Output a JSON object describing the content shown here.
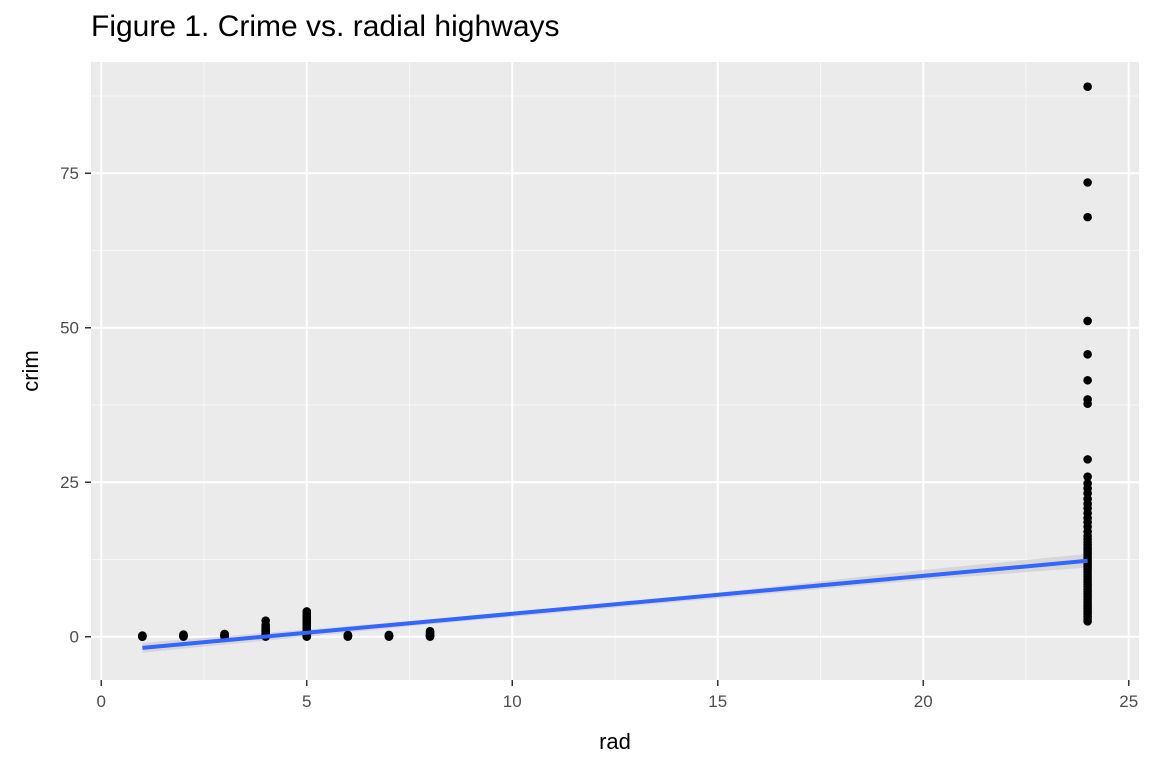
{
  "chart_data": {
    "type": "scatter",
    "title": "Figure 1. Crime vs. radial highways",
    "xlabel": "rad",
    "ylabel": "crim",
    "xlim": [
      -0.25,
      25.25
    ],
    "ylim": [
      -7,
      93
    ],
    "x_ticks": [
      0,
      5,
      10,
      15,
      20,
      25
    ],
    "y_ticks": [
      0,
      25,
      50,
      75
    ],
    "grid": true,
    "legend": "none",
    "colors": {
      "panel_background": "#ebebeb",
      "gridline": "#ffffff",
      "points": "#000000",
      "trend_line": "#3366ff",
      "confidence_band": "#c8c8c8"
    },
    "trend_line": {
      "method": "linear",
      "x": [
        1,
        24
      ],
      "y": [
        -1.8,
        12.3
      ]
    },
    "confidence_band": {
      "x": [
        1,
        8,
        14,
        20,
        24
      ],
      "lower": [
        -2.6,
        2.0,
        5.6,
        9.2,
        11.2
      ],
      "upper": [
        -1.0,
        2.8,
        6.4,
        10.8,
        13.4
      ]
    },
    "series": [
      {
        "points": [
          [
            1,
            0.01
          ],
          [
            1,
            0.03
          ],
          [
            1,
            0.06
          ],
          [
            1,
            0.09
          ],
          [
            1,
            0.13
          ],
          [
            1,
            0.2
          ],
          [
            2,
            0.02
          ],
          [
            2,
            0.05
          ],
          [
            2,
            0.1
          ],
          [
            2,
            0.15
          ],
          [
            2,
            0.25
          ],
          [
            2,
            0.35
          ],
          [
            3,
            0.02
          ],
          [
            3,
            0.05
          ],
          [
            3,
            0.1
          ],
          [
            3,
            0.15
          ],
          [
            3,
            0.25
          ],
          [
            3,
            0.35
          ],
          [
            3,
            0.45
          ],
          [
            4,
            0.02
          ],
          [
            4,
            0.05
          ],
          [
            4,
            0.1
          ],
          [
            4,
            0.2
          ],
          [
            4,
            0.35
          ],
          [
            4,
            0.5
          ],
          [
            4,
            0.7
          ],
          [
            4,
            0.9
          ],
          [
            4,
            1.1
          ],
          [
            4,
            1.3
          ],
          [
            4,
            1.6
          ],
          [
            4,
            1.9
          ],
          [
            4,
            2.6
          ],
          [
            5,
            0.02
          ],
          [
            5,
            0.05
          ],
          [
            5,
            0.1
          ],
          [
            5,
            0.2
          ],
          [
            5,
            0.35
          ],
          [
            5,
            0.5
          ],
          [
            5,
            0.7
          ],
          [
            5,
            0.9
          ],
          [
            5,
            1.1
          ],
          [
            5,
            1.3
          ],
          [
            5,
            1.6
          ],
          [
            5,
            1.9
          ],
          [
            5,
            2.2
          ],
          [
            5,
            2.5
          ],
          [
            5,
            2.8
          ],
          [
            5,
            3.1
          ],
          [
            5,
            3.4
          ],
          [
            5,
            3.7
          ],
          [
            5,
            4.1
          ],
          [
            6,
            0.02
          ],
          [
            6,
            0.05
          ],
          [
            6,
            0.1
          ],
          [
            6,
            0.15
          ],
          [
            6,
            0.2
          ],
          [
            6,
            0.3
          ],
          [
            7,
            0.02
          ],
          [
            7,
            0.05
          ],
          [
            7,
            0.1
          ],
          [
            7,
            0.15
          ],
          [
            7,
            0.2
          ],
          [
            7,
            0.3
          ],
          [
            8,
            0.02
          ],
          [
            8,
            0.05
          ],
          [
            8,
            0.1
          ],
          [
            8,
            0.2
          ],
          [
            8,
            0.3
          ],
          [
            8,
            0.5
          ],
          [
            8,
            0.7
          ],
          [
            8,
            0.9
          ],
          [
            24,
            2.5
          ],
          [
            24,
            2.9
          ],
          [
            24,
            3.3
          ],
          [
            24,
            3.7
          ],
          [
            24,
            4.1
          ],
          [
            24,
            4.5
          ],
          [
            24,
            4.9
          ],
          [
            24,
            5.3
          ],
          [
            24,
            5.7
          ],
          [
            24,
            6.1
          ],
          [
            24,
            6.5
          ],
          [
            24,
            6.9
          ],
          [
            24,
            7.3
          ],
          [
            24,
            7.7
          ],
          [
            24,
            8.1
          ],
          [
            24,
            8.5
          ],
          [
            24,
            8.9
          ],
          [
            24,
            9.3
          ],
          [
            24,
            9.7
          ],
          [
            24,
            10.1
          ],
          [
            24,
            10.5
          ],
          [
            24,
            10.9
          ],
          [
            24,
            11.3
          ],
          [
            24,
            11.7
          ],
          [
            24,
            12.1
          ],
          [
            24,
            12.5
          ],
          [
            24,
            12.9
          ],
          [
            24,
            13.3
          ],
          [
            24,
            13.7
          ],
          [
            24,
            14.1
          ],
          [
            24,
            14.5
          ],
          [
            24,
            14.9
          ],
          [
            24,
            15.3
          ],
          [
            24,
            15.8
          ],
          [
            24,
            16.3
          ],
          [
            24,
            17.0
          ],
          [
            24,
            17.8
          ],
          [
            24,
            18.5
          ],
          [
            24,
            19.2
          ],
          [
            24,
            20.0
          ],
          [
            24,
            20.8
          ],
          [
            24,
            21.5
          ],
          [
            24,
            22.3
          ],
          [
            24,
            23.2
          ],
          [
            24,
            24.0
          ],
          [
            24,
            24.8
          ],
          [
            24,
            25.9
          ],
          [
            24,
            28.7
          ],
          [
            24,
            37.7
          ],
          [
            24,
            38.4
          ],
          [
            24,
            41.5
          ],
          [
            24,
            45.7
          ],
          [
            24,
            51.1
          ],
          [
            24,
            67.9
          ],
          [
            24,
            73.5
          ],
          [
            24,
            89.0
          ]
        ]
      }
    ]
  }
}
